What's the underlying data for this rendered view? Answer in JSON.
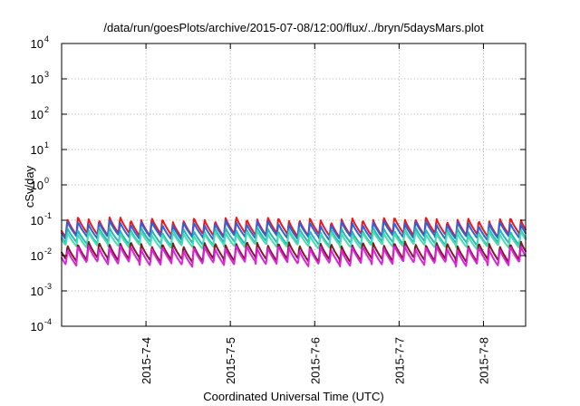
{
  "chart_data": {
    "type": "line",
    "title": "/data/run/goesPlots/archive/2015-07-08/12:00/flux/../bryn/5daysMars.plot",
    "xlabel": "Coordinated Universal Time (UTC)",
    "ylabel": "cSv/day",
    "y_scale": "log",
    "ylim": [
      0.0001,
      10000
    ],
    "xlim": [
      "2015-07-03 00:00",
      "2015-07-08 12:00"
    ],
    "x_ticks": [
      "2015-7-4",
      "2015-7-5",
      "2015-7-6",
      "2015-7-7",
      "2015-7-8"
    ],
    "y_ticks": [
      {
        "base": "10",
        "exp": "-4",
        "value": 0.0001
      },
      {
        "base": "10",
        "exp": "-3",
        "value": 0.001
      },
      {
        "base": "10",
        "exp": "-2",
        "value": 0.01
      },
      {
        "base": "10",
        "exp": "-1",
        "value": 0.1
      },
      {
        "base": "10",
        "exp": "0",
        "value": 1
      },
      {
        "base": "10",
        "exp": "1",
        "value": 10
      },
      {
        "base": "10",
        "exp": "2",
        "value": 100
      },
      {
        "base": "10",
        "exp": "3",
        "value": 1000
      },
      {
        "base": "10",
        "exp": "4",
        "value": 10000
      }
    ],
    "grid": true,
    "pattern": "sawtooth pulses every ~3 h: sharp rise then decay",
    "series": [
      {
        "color": "#e41a1c",
        "peak": 0.11,
        "trough": 0.038
      },
      {
        "color": "#3060e0",
        "peak": 0.085,
        "trough": 0.032
      },
      {
        "color": "#30b0c0",
        "peak": 0.055,
        "trough": 0.022
      },
      {
        "color": "#40e0b0",
        "peak": 0.045,
        "trough": 0.018
      },
      {
        "color": "#7a1f1f",
        "peak": 0.022,
        "trough": 0.0075
      },
      {
        "color": "#e020e0",
        "peak": 0.017,
        "trough": 0.0058
      }
    ]
  }
}
